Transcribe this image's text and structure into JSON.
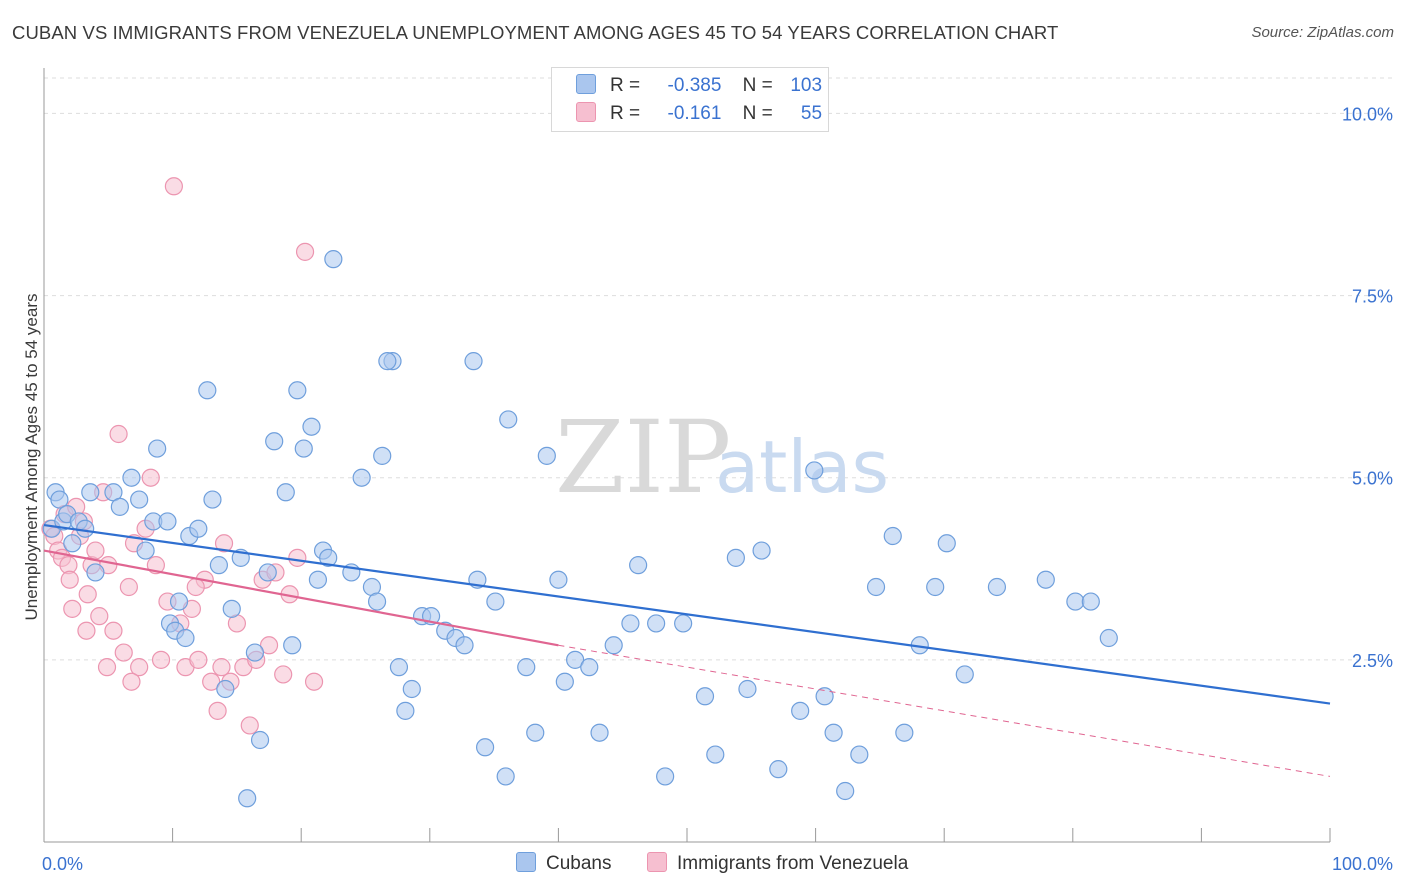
{
  "header": {
    "title": "CUBAN VS IMMIGRANTS FROM VENEZUELA UNEMPLOYMENT AMONG AGES 45 TO 54 YEARS CORRELATION CHART",
    "source": "Source: ZipAtlas.com"
  },
  "legend": {
    "rows": [
      {
        "r_label": "R =",
        "r_value": "-0.385",
        "n_label": "N =",
        "n_value": "103"
      },
      {
        "r_label": "R =",
        "r_value": "-0.161",
        "n_label": "N =",
        "n_value": "55"
      }
    ]
  },
  "bottom_legend": [
    "Cubans",
    "Immigrants from Venezuela"
  ],
  "watermark": {
    "zip": "ZIP",
    "atlas": "atlas"
  },
  "colors": {
    "blue_fill": "#aac6ee",
    "blue_stroke": "#6f9fdc",
    "blue_line": "#2f6fd0",
    "pink_fill": "#f6bfd0",
    "pink_stroke": "#ec95b0",
    "pink_line": "#e06591",
    "axis_text": "#3a72d0",
    "grid": "#dddddd"
  },
  "chart_data": {
    "type": "scatter",
    "title": "CUBAN VS IMMIGRANTS FROM VENEZUELA UNEMPLOYMENT AMONG AGES 45 TO 54 YEARS CORRELATION CHART",
    "xlabel": "",
    "ylabel": "Unemployment Among Ages 45 to 54 years",
    "xlim": [
      0,
      100
    ],
    "ylim": [
      0,
      10.5
    ],
    "x_tick_labels": [
      "0.0%",
      "100.0%"
    ],
    "y_ticks": [
      2.5,
      5.0,
      7.5,
      10.0
    ],
    "y_tick_labels": [
      "2.5%",
      "5.0%",
      "7.5%",
      "10.0%"
    ],
    "series": [
      {
        "name": "Cubans",
        "r": -0.385,
        "n": 103,
        "trend": {
          "x0": 0,
          "y0": 4.35,
          "x1": 100,
          "y1": 1.9
        },
        "points": [
          [
            0.6,
            4.3
          ],
          [
            0.9,
            4.8
          ],
          [
            1.2,
            4.7
          ],
          [
            1.5,
            4.4
          ],
          [
            1.8,
            4.5
          ],
          [
            2.2,
            4.1
          ],
          [
            2.7,
            4.4
          ],
          [
            3.2,
            4.3
          ],
          [
            3.6,
            4.8
          ],
          [
            4.0,
            3.7
          ],
          [
            5.4,
            4.8
          ],
          [
            5.9,
            4.6
          ],
          [
            6.8,
            5.0
          ],
          [
            7.4,
            4.7
          ],
          [
            7.9,
            4.0
          ],
          [
            8.5,
            4.4
          ],
          [
            8.8,
            5.4
          ],
          [
            9.6,
            4.4
          ],
          [
            9.8,
            3.0
          ],
          [
            10.2,
            2.9
          ],
          [
            10.5,
            3.3
          ],
          [
            11.0,
            2.8
          ],
          [
            11.3,
            4.2
          ],
          [
            12.0,
            4.3
          ],
          [
            12.7,
            6.2
          ],
          [
            13.1,
            4.7
          ],
          [
            13.6,
            3.8
          ],
          [
            14.1,
            2.1
          ],
          [
            14.6,
            3.2
          ],
          [
            15.3,
            3.9
          ],
          [
            15.8,
            0.6
          ],
          [
            16.4,
            2.6
          ],
          [
            16.8,
            1.4
          ],
          [
            17.4,
            3.7
          ],
          [
            17.9,
            5.5
          ],
          [
            18.8,
            4.8
          ],
          [
            19.3,
            2.7
          ],
          [
            19.7,
            6.2
          ],
          [
            20.2,
            5.4
          ],
          [
            20.8,
            5.7
          ],
          [
            21.3,
            3.6
          ],
          [
            21.7,
            4.0
          ],
          [
            22.1,
            3.9
          ],
          [
            22.5,
            8.0
          ],
          [
            23.9,
            3.7
          ],
          [
            24.7,
            5.0
          ],
          [
            25.5,
            3.5
          ],
          [
            25.9,
            3.3
          ],
          [
            26.3,
            5.3
          ],
          [
            27.1,
            6.6
          ],
          [
            27.6,
            2.4
          ],
          [
            28.1,
            1.8
          ],
          [
            28.6,
            2.1
          ],
          [
            29.4,
            3.1
          ],
          [
            30.1,
            3.1
          ],
          [
            31.2,
            2.9
          ],
          [
            32.0,
            2.8
          ],
          [
            32.7,
            2.7
          ],
          [
            33.7,
            3.6
          ],
          [
            34.3,
            1.3
          ],
          [
            35.1,
            3.3
          ],
          [
            35.9,
            0.9
          ],
          [
            37.5,
            2.4
          ],
          [
            39.1,
            5.3
          ],
          [
            40.0,
            3.6
          ],
          [
            40.5,
            2.2
          ],
          [
            41.3,
            2.5
          ],
          [
            42.4,
            2.4
          ],
          [
            43.2,
            1.5
          ],
          [
            44.3,
            2.7
          ],
          [
            45.6,
            3.0
          ],
          [
            46.2,
            3.8
          ],
          [
            47.6,
            3.0
          ],
          [
            48.3,
            0.9
          ],
          [
            49.7,
            3.0
          ],
          [
            51.4,
            2.0
          ],
          [
            52.2,
            1.2
          ],
          [
            53.8,
            3.9
          ],
          [
            54.7,
            2.1
          ],
          [
            55.8,
            4.0
          ],
          [
            57.1,
            1.0
          ],
          [
            58.8,
            1.8
          ],
          [
            59.9,
            5.1
          ],
          [
            60.7,
            2.0
          ],
          [
            61.4,
            1.5
          ],
          [
            62.3,
            0.7
          ],
          [
            63.4,
            1.2
          ],
          [
            64.7,
            3.5
          ],
          [
            66.0,
            4.2
          ],
          [
            66.9,
            1.5
          ],
          [
            68.1,
            2.7
          ],
          [
            69.3,
            3.5
          ],
          [
            70.2,
            4.1
          ],
          [
            71.6,
            2.3
          ],
          [
            74.1,
            3.5
          ],
          [
            77.9,
            3.6
          ],
          [
            80.2,
            3.3
          ],
          [
            81.4,
            3.3
          ],
          [
            82.8,
            2.8
          ],
          [
            36.1,
            5.8
          ],
          [
            33.4,
            6.6
          ],
          [
            26.7,
            6.6
          ],
          [
            38.2,
            1.5
          ]
        ]
      },
      {
        "name": "Immigrants from Venezuela",
        "r": -0.161,
        "n": 55,
        "trend": {
          "x0": 0,
          "y0": 4.0,
          "x1": 40,
          "y1": 2.7
        },
        "trend_dashed": {
          "x0": 40,
          "y0": 2.7,
          "x1": 100,
          "y1": 0.9
        },
        "points": [
          [
            0.5,
            4.3
          ],
          [
            0.8,
            4.2
          ],
          [
            1.1,
            4.0
          ],
          [
            1.4,
            3.9
          ],
          [
            1.6,
            4.5
          ],
          [
            1.9,
            3.8
          ],
          [
            2.2,
            3.2
          ],
          [
            2.5,
            4.6
          ],
          [
            2.8,
            4.2
          ],
          [
            3.1,
            4.4
          ],
          [
            3.4,
            3.4
          ],
          [
            3.7,
            3.8
          ],
          [
            4.0,
            4.0
          ],
          [
            4.3,
            3.1
          ],
          [
            4.6,
            4.8
          ],
          [
            5.0,
            3.8
          ],
          [
            5.4,
            2.9
          ],
          [
            5.8,
            5.6
          ],
          [
            6.2,
            2.6
          ],
          [
            6.6,
            3.5
          ],
          [
            7.0,
            4.1
          ],
          [
            7.4,
            2.4
          ],
          [
            7.9,
            4.3
          ],
          [
            8.3,
            5.0
          ],
          [
            8.7,
            3.8
          ],
          [
            9.1,
            2.5
          ],
          [
            9.6,
            3.3
          ],
          [
            10.1,
            9.0
          ],
          [
            10.6,
            3.0
          ],
          [
            11.0,
            2.4
          ],
          [
            11.5,
            3.2
          ],
          [
            12.0,
            2.5
          ],
          [
            12.5,
            3.6
          ],
          [
            13.0,
            2.2
          ],
          [
            13.5,
            1.8
          ],
          [
            14.0,
            4.1
          ],
          [
            14.5,
            2.2
          ],
          [
            15.0,
            3.0
          ],
          [
            15.5,
            2.4
          ],
          [
            16.0,
            1.6
          ],
          [
            16.5,
            2.5
          ],
          [
            17.0,
            3.6
          ],
          [
            17.5,
            2.7
          ],
          [
            18.0,
            3.7
          ],
          [
            18.6,
            2.3
          ],
          [
            19.1,
            3.4
          ],
          [
            19.7,
            3.9
          ],
          [
            20.3,
            8.1
          ],
          [
            21.0,
            2.2
          ],
          [
            2.0,
            3.6
          ],
          [
            3.3,
            2.9
          ],
          [
            4.9,
            2.4
          ],
          [
            6.8,
            2.2
          ],
          [
            11.8,
            3.5
          ],
          [
            13.8,
            2.4
          ]
        ]
      }
    ]
  }
}
